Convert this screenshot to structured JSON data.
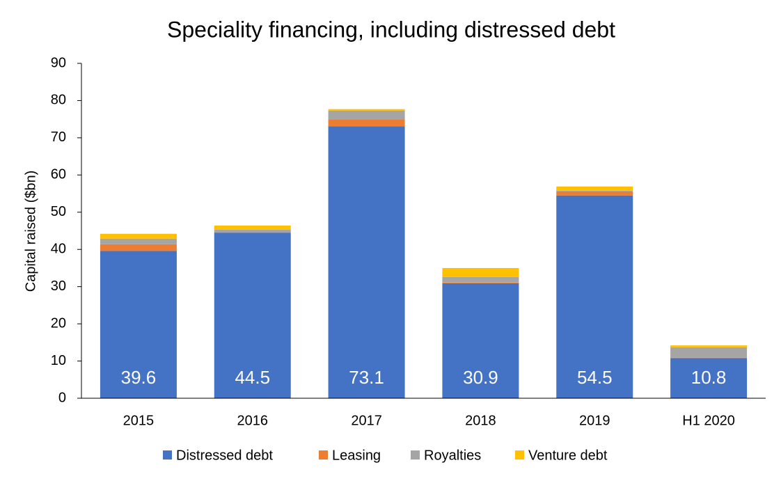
{
  "chart_data": {
    "type": "stacked_bar",
    "title": "Speciality financing, including distressed debt",
    "y_label": "Capital raised ($bn)",
    "categories": [
      "2015",
      "2016",
      "2017",
      "2018",
      "2019",
      "H1 2020"
    ],
    "series": [
      {
        "name": "Distressed debt",
        "color": "#4472c4",
        "values": [
          39.6,
          44.5,
          73.1,
          30.9,
          54.5,
          10.8
        ]
      },
      {
        "name": "Leasing",
        "color": "#ed7d31",
        "values": [
          1.8,
          0.2,
          1.9,
          0.2,
          1.1,
          0.1
        ]
      },
      {
        "name": "Royalties",
        "color": "#a5a5a5",
        "values": [
          1.5,
          0.6,
          2.3,
          1.5,
          0.2,
          2.8
        ]
      },
      {
        "name": "Venture debt",
        "color": "#ffc000",
        "values": [
          1.3,
          1.1,
          0.4,
          2.4,
          1.1,
          0.5
        ]
      }
    ],
    "ylim": [
      0,
      90
    ],
    "yticks": [
      0,
      10,
      20,
      30,
      40,
      50,
      60,
      70,
      80,
      90
    ],
    "data_labels_series": 0,
    "legend": "bottom",
    "grid": false
  }
}
